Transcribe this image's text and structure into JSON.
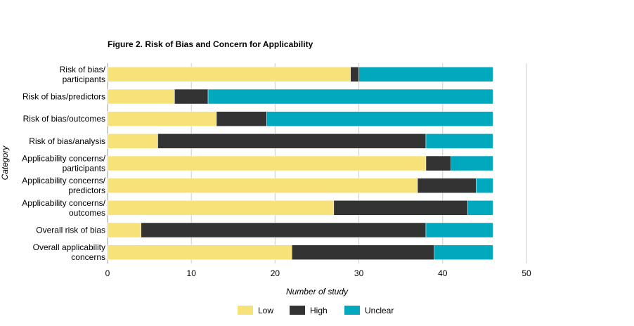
{
  "chart_data": {
    "type": "bar",
    "orientation": "horizontal",
    "stacked": true,
    "title": "Figure 2. Risk of Bias and Concern for Applicability",
    "xlabel": "Number of study",
    "ylabel": "Category",
    "xlim": [
      0,
      50
    ],
    "xticks": [
      0,
      10,
      20,
      30,
      40,
      50
    ],
    "grid": "vertical",
    "legend_position": "bottom",
    "categories": [
      [
        "Risk of bias/",
        "participants"
      ],
      [
        "Risk of bias/predictors"
      ],
      [
        "Risk of bias/outcomes"
      ],
      [
        "Risk of bias/analysis"
      ],
      [
        "Applicability concerns/",
        "participants"
      ],
      [
        "Applicability concerns/",
        "predictors"
      ],
      [
        "Applicability concerns/",
        "outcomes"
      ],
      [
        "Overall risk of bias"
      ],
      [
        "Overall applicability",
        "concerns"
      ]
    ],
    "series": [
      {
        "name": "Low",
        "color": "#f7e27a",
        "values": [
          29,
          8,
          13,
          6,
          38,
          37,
          27,
          4,
          22
        ]
      },
      {
        "name": "High",
        "color": "#333333",
        "values": [
          1,
          4,
          6,
          32,
          3,
          7,
          16,
          34,
          17
        ]
      },
      {
        "name": "Unclear",
        "color": "#00a9bd",
        "values": [
          16,
          34,
          27,
          8,
          5,
          2,
          3,
          8,
          7
        ]
      }
    ]
  }
}
